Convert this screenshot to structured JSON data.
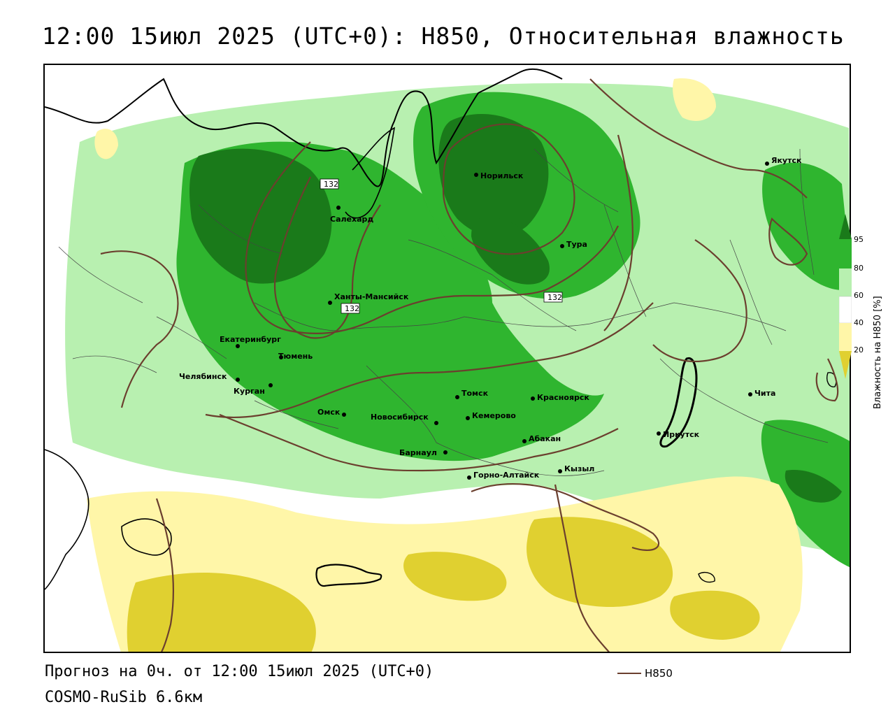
{
  "title": "12:00 15июл 2025 (UTC+0): H850, Относительная влажность",
  "forecast_text": "Прогноз на 0ч. от 12:00 15июл 2025 (UTC+0)",
  "model_text": "COSMO-RuSib 6.6км",
  "legend": {
    "line_label": "H850",
    "line_color": "#6b3f2e"
  },
  "colorbar": {
    "title": "Влажность на H850 [%]",
    "ticks": [
      "95",
      "80",
      "60",
      "40",
      "20"
    ],
    "colors": {
      "above_95": "#1a7a1a",
      "80_95": "#2fb52f",
      "60_80": "#b8f0b0",
      "40_60": "#ffffff",
      "20_40": "#fff6a8",
      "below_20": "#e0d030"
    }
  },
  "isoline_labels": [
    "132",
    "132",
    "132"
  ],
  "cities": [
    {
      "name": "Якутск"
    },
    {
      "name": "Норильск"
    },
    {
      "name": "Салехард"
    },
    {
      "name": "Тура"
    },
    {
      "name": "Ханты-Мансийск"
    },
    {
      "name": "Екатеринбург"
    },
    {
      "name": "Тюмень"
    },
    {
      "name": "Челябинск"
    },
    {
      "name": "Курган"
    },
    {
      "name": "Омск"
    },
    {
      "name": "Новосибирск"
    },
    {
      "name": "Томск"
    },
    {
      "name": "Кемерово"
    },
    {
      "name": "Красноярск"
    },
    {
      "name": "Абакан"
    },
    {
      "name": "Барнаул"
    },
    {
      "name": "Горно-Алтайск"
    },
    {
      "name": "Кызыл"
    },
    {
      "name": "Иркутск"
    },
    {
      "name": "Чита"
    }
  ]
}
